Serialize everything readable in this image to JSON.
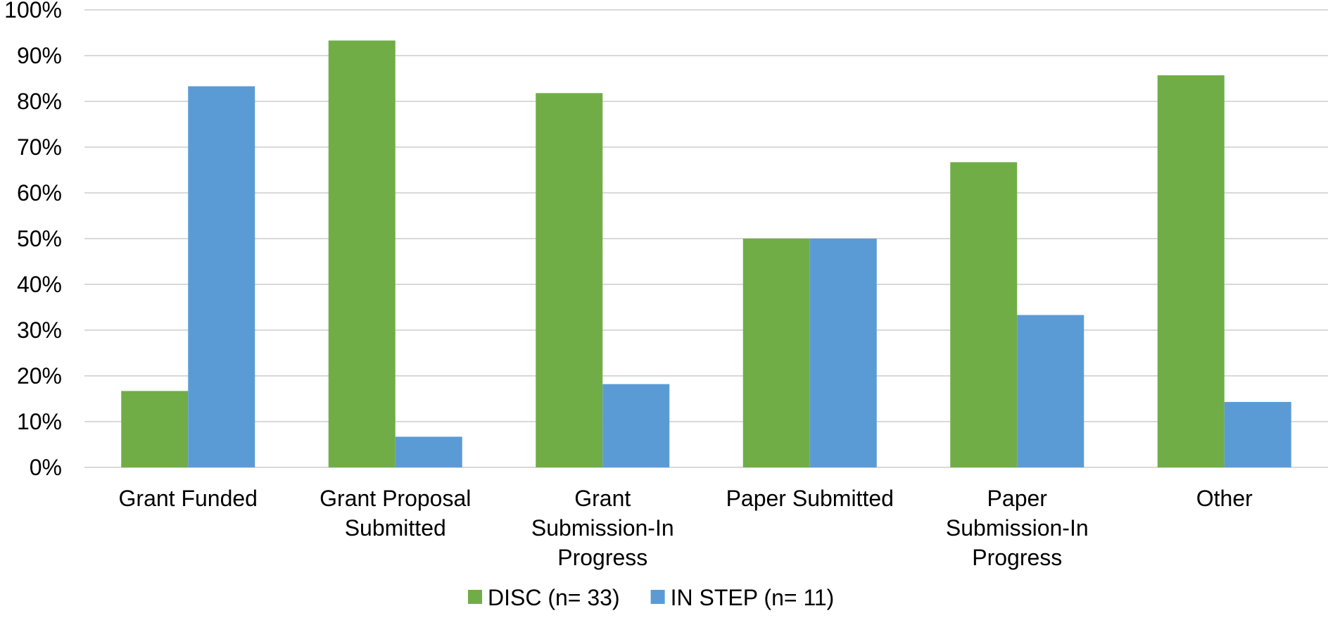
{
  "chart_data": {
    "type": "bar",
    "categories": [
      "Grant Funded",
      "Grant Proposal Submitted",
      "Grant Submission-In Progress",
      "Paper Submitted",
      "Paper Submission-In Progress",
      "Other"
    ],
    "category_label_lines": [
      [
        "Grant Funded"
      ],
      [
        "Grant Proposal",
        "Submitted"
      ],
      [
        "Grant",
        "Submission-In",
        "Progress"
      ],
      [
        "Paper Submitted"
      ],
      [
        "Paper",
        "Submission-In",
        "Progress"
      ],
      [
        "Other"
      ]
    ],
    "series": [
      {
        "name": "DISC (n= 33)",
        "color": "#70ad47",
        "values": [
          16.7,
          93.3,
          81.8,
          50.0,
          66.7,
          85.7
        ]
      },
      {
        "name": "IN STEP (n= 11)",
        "color": "#5b9bd5",
        "values": [
          83.3,
          6.7,
          18.2,
          50.0,
          33.3,
          14.3
        ]
      }
    ],
    "y_ticks": [
      "0%",
      "10%",
      "20%",
      "30%",
      "40%",
      "50%",
      "60%",
      "70%",
      "80%",
      "90%",
      "100%"
    ],
    "ylim": [
      0,
      100
    ],
    "grid": true,
    "grid_color": "#d9d9d9",
    "legend_position": "bottom"
  }
}
